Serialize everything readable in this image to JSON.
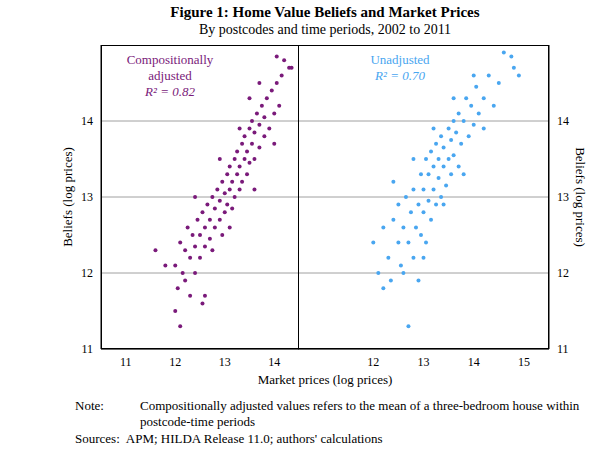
{
  "title": "Figure 1: Home Value Beliefs and Market Prices",
  "subtitle": "By postcodes and time periods, 2002 to 2011",
  "x_label": "Market prices (log prices)",
  "y_label": "Beliefs (log prices)",
  "note": {
    "label": "Note:",
    "text": "Compositionally adjusted values refers to the mean of a three-bedroom house within postcode-time periods"
  },
  "sources": {
    "label": "Sources:",
    "text": "APM; HILDA Release 11.0; authors' calculations"
  },
  "chart_data": [
    {
      "type": "scatter",
      "series": [
        {
          "name": "Compositionally adjusted",
          "color": "#7a1a7a",
          "x": [
            12.0,
            12.05,
            12.1,
            12.1,
            12.15,
            12.2,
            12.2,
            12.25,
            12.3,
            12.3,
            12.35,
            12.4,
            12.4,
            12.45,
            12.5,
            12.5,
            12.55,
            12.55,
            12.6,
            12.6,
            12.65,
            12.7,
            12.7,
            12.75,
            12.75,
            12.8,
            12.8,
            12.85,
            12.9,
            12.9,
            12.95,
            12.95,
            13.0,
            13.0,
            13.05,
            13.05,
            13.1,
            13.1,
            13.15,
            13.15,
            13.2,
            13.2,
            13.25,
            13.25,
            13.3,
            13.3,
            13.35,
            13.35,
            13.4,
            13.4,
            13.45,
            13.45,
            13.5,
            13.5,
            13.55,
            13.55,
            13.6,
            13.6,
            13.65,
            13.7,
            13.7,
            13.75,
            13.8,
            13.8,
            13.85,
            13.9,
            13.95,
            14.0,
            14.05,
            14.1,
            14.15,
            14.2,
            14.3,
            14.35,
            11.6,
            11.8,
            12.0,
            12.6,
            13.1,
            13.6,
            14.0,
            12.4,
            12.9,
            13.3,
            13.5,
            13.7,
            14.05
          ],
          "values": [
            12.1,
            11.8,
            11.3,
            12.4,
            12.0,
            11.9,
            12.3,
            12.6,
            11.7,
            12.2,
            12.5,
            12.0,
            12.35,
            12.7,
            12.2,
            12.5,
            11.6,
            12.8,
            12.35,
            12.6,
            12.9,
            12.45,
            12.7,
            13.0,
            12.3,
            12.6,
            12.85,
            13.1,
            12.7,
            12.95,
            13.2,
            12.5,
            12.8,
            13.05,
            13.3,
            12.9,
            13.1,
            13.4,
            12.85,
            13.2,
            13.5,
            13.0,
            13.3,
            13.6,
            13.1,
            13.4,
            13.7,
            13.2,
            13.5,
            13.8,
            13.3,
            13.6,
            13.9,
            13.45,
            13.7,
            14.0,
            13.5,
            13.85,
            14.1,
            13.65,
            13.95,
            14.2,
            13.8,
            14.05,
            14.3,
            13.9,
            14.4,
            14.1,
            14.5,
            14.2,
            14.6,
            14.8,
            14.7,
            14.7,
            12.3,
            12.1,
            11.5,
            11.7,
            12.6,
            13.1,
            13.7,
            13.0,
            13.5,
            13.9,
            14.3,
            14.5,
            14.85
          ]
        }
      ],
      "annotation": "R² = 0.82",
      "xlim": [
        10.5,
        14.5
      ],
      "xticks": [
        11,
        12,
        13,
        14
      ],
      "ylim": [
        11,
        15
      ],
      "yticks": [
        11,
        12,
        13,
        14
      ],
      "grid": true
    },
    {
      "type": "scatter",
      "series": [
        {
          "name": "Unadjusted",
          "color": "#49a6f0",
          "x": [
            12.0,
            12.1,
            12.2,
            12.3,
            12.35,
            12.4,
            12.5,
            12.5,
            12.55,
            12.6,
            12.65,
            12.7,
            12.7,
            12.75,
            12.8,
            12.8,
            12.85,
            12.9,
            12.9,
            12.95,
            12.95,
            13.0,
            13.0,
            13.05,
            13.05,
            13.1,
            13.1,
            13.15,
            13.15,
            13.2,
            13.2,
            13.25,
            13.25,
            13.3,
            13.3,
            13.35,
            13.35,
            13.4,
            13.4,
            13.45,
            13.5,
            13.5,
            13.55,
            13.55,
            13.6,
            13.6,
            13.65,
            13.7,
            13.7,
            13.75,
            13.8,
            13.85,
            13.9,
            13.95,
            14.0,
            14.05,
            14.1,
            14.2,
            14.3,
            14.4,
            14.5,
            14.6,
            14.75,
            14.8,
            14.9,
            12.2,
            12.6,
            13.0,
            13.4,
            13.8,
            12.4,
            12.8,
            13.2,
            13.6,
            14.0,
            14.2
          ],
          "values": [
            12.4,
            12.0,
            12.6,
            12.2,
            11.9,
            12.7,
            12.4,
            12.9,
            12.1,
            12.6,
            13.0,
            11.3,
            12.4,
            12.8,
            12.2,
            13.1,
            12.6,
            11.9,
            12.9,
            13.3,
            12.5,
            12.8,
            13.1,
            13.5,
            12.4,
            12.95,
            13.3,
            12.7,
            13.6,
            13.1,
            13.4,
            12.9,
            13.7,
            13.25,
            13.5,
            13.0,
            13.8,
            13.4,
            13.65,
            13.15,
            13.9,
            13.5,
            13.3,
            13.75,
            14.0,
            13.55,
            13.85,
            13.4,
            14.1,
            13.7,
            14.0,
            14.3,
            13.8,
            14.2,
            13.95,
            14.45,
            14.1,
            14.3,
            14.6,
            14.2,
            14.5,
            14.9,
            14.85,
            14.7,
            14.6,
            11.8,
            12.0,
            12.2,
            12.9,
            13.3,
            13.2,
            13.5,
            13.9,
            14.3,
            14.6,
            13.9
          ]
        }
      ],
      "annotation": "R² = 0.70",
      "xlim": [
        10.5,
        15.5
      ],
      "xticks": [
        12,
        13,
        14,
        15
      ],
      "ylim": [
        11,
        15
      ],
      "yticks": [
        11,
        12,
        13,
        14
      ],
      "grid": true
    }
  ]
}
